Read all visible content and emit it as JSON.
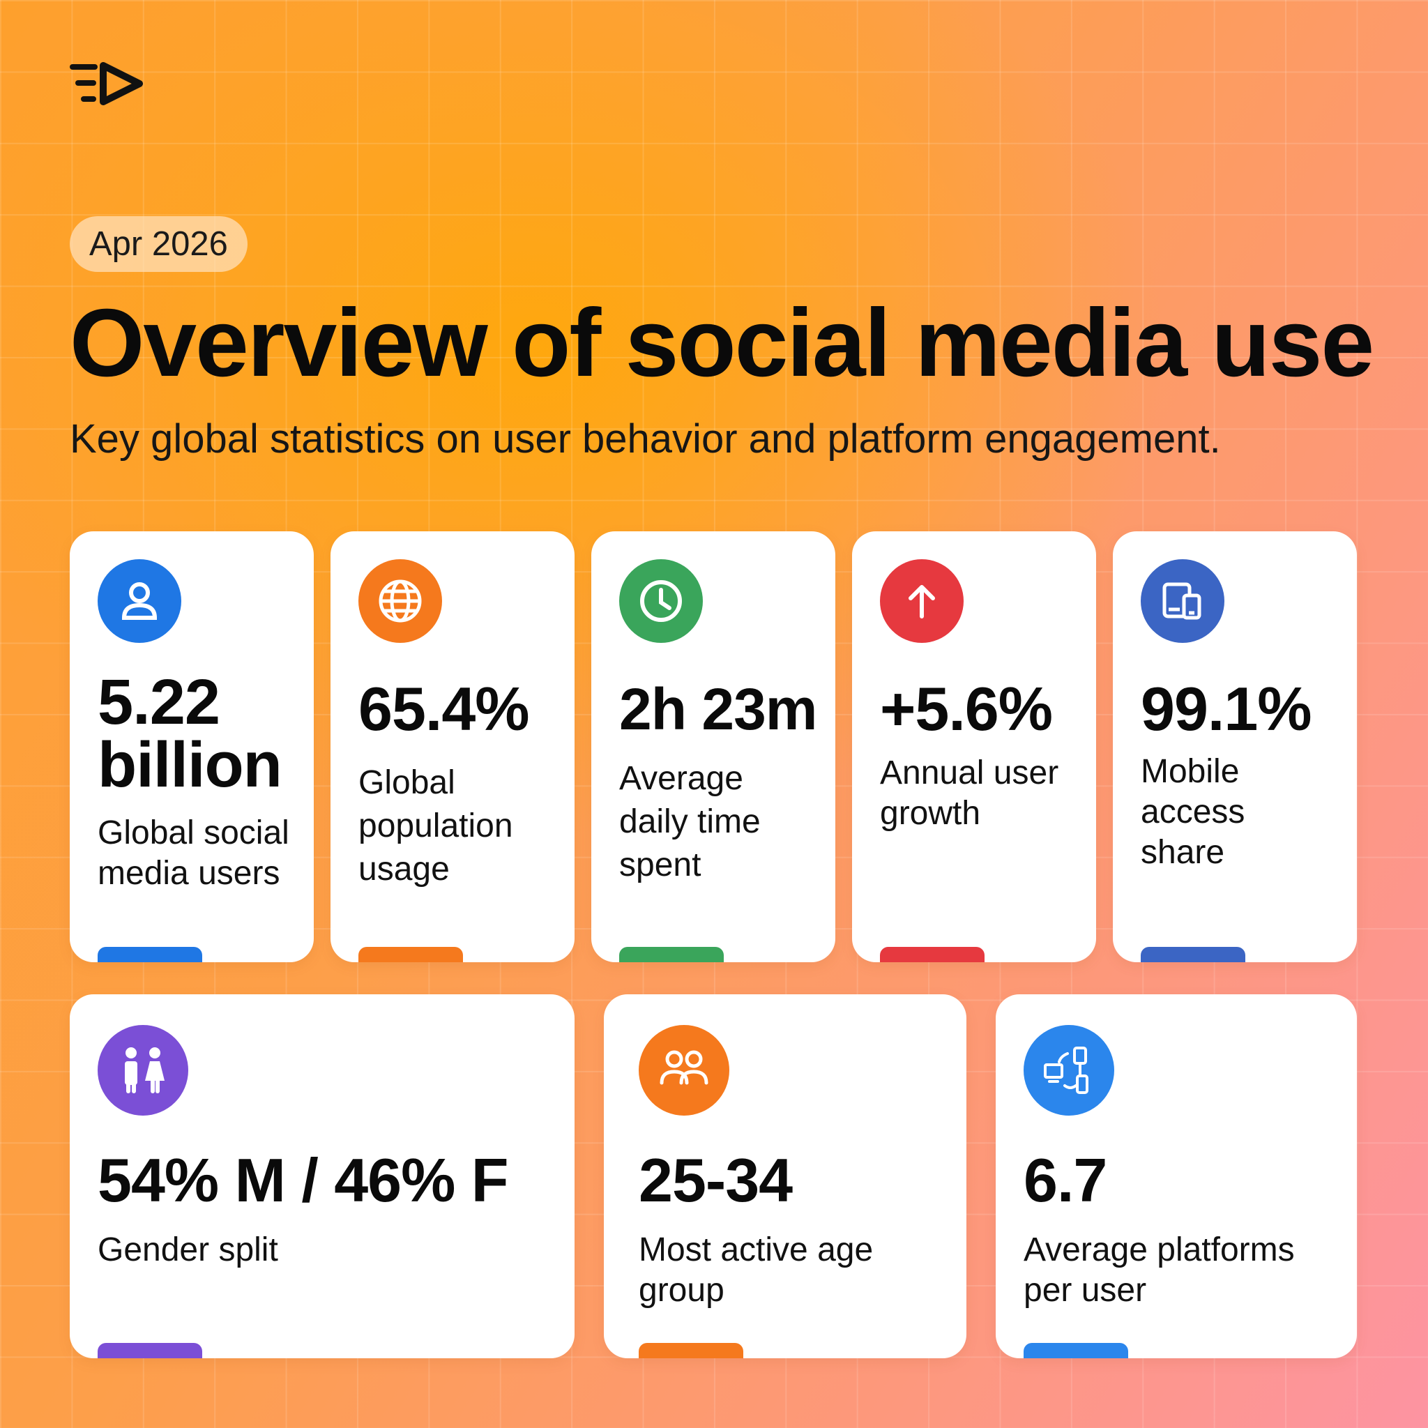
{
  "header": {
    "date": "Apr 2026",
    "title": "Overview of social media use",
    "subtitle": "Key global statistics on user behavior and platform engagement."
  },
  "stats": [
    {
      "value_line1": "5.22",
      "value_line2": "billion",
      "label": "Global social media users",
      "icon": "user-icon",
      "color": "#1f77e4"
    },
    {
      "value": "65.4%",
      "label": "Global population usage",
      "icon": "globe-icon",
      "color": "#f5791d"
    },
    {
      "value": "2h 23m",
      "label": "Average daily time spent",
      "icon": "clock-icon",
      "color": "#3aa55b"
    },
    {
      "value": "+5.6%",
      "label": "Annual user growth",
      "icon": "arrow-up-icon",
      "color": "#e6393f"
    },
    {
      "value": "99.1%",
      "label": "Mobile access share",
      "icon": "devices-icon",
      "color": "#3b65c4"
    },
    {
      "value": "54% M / 46% F",
      "label": "Gender split",
      "icon": "gender-icon",
      "color": "#7b4fd6"
    },
    {
      "value": "25-34",
      "label": "Most active age group",
      "icon": "people-icon",
      "color": "#f5791d"
    },
    {
      "value": "6.7",
      "label": "Average platforms per user",
      "icon": "multi-platform-icon",
      "color": "#2b86ec"
    }
  ]
}
